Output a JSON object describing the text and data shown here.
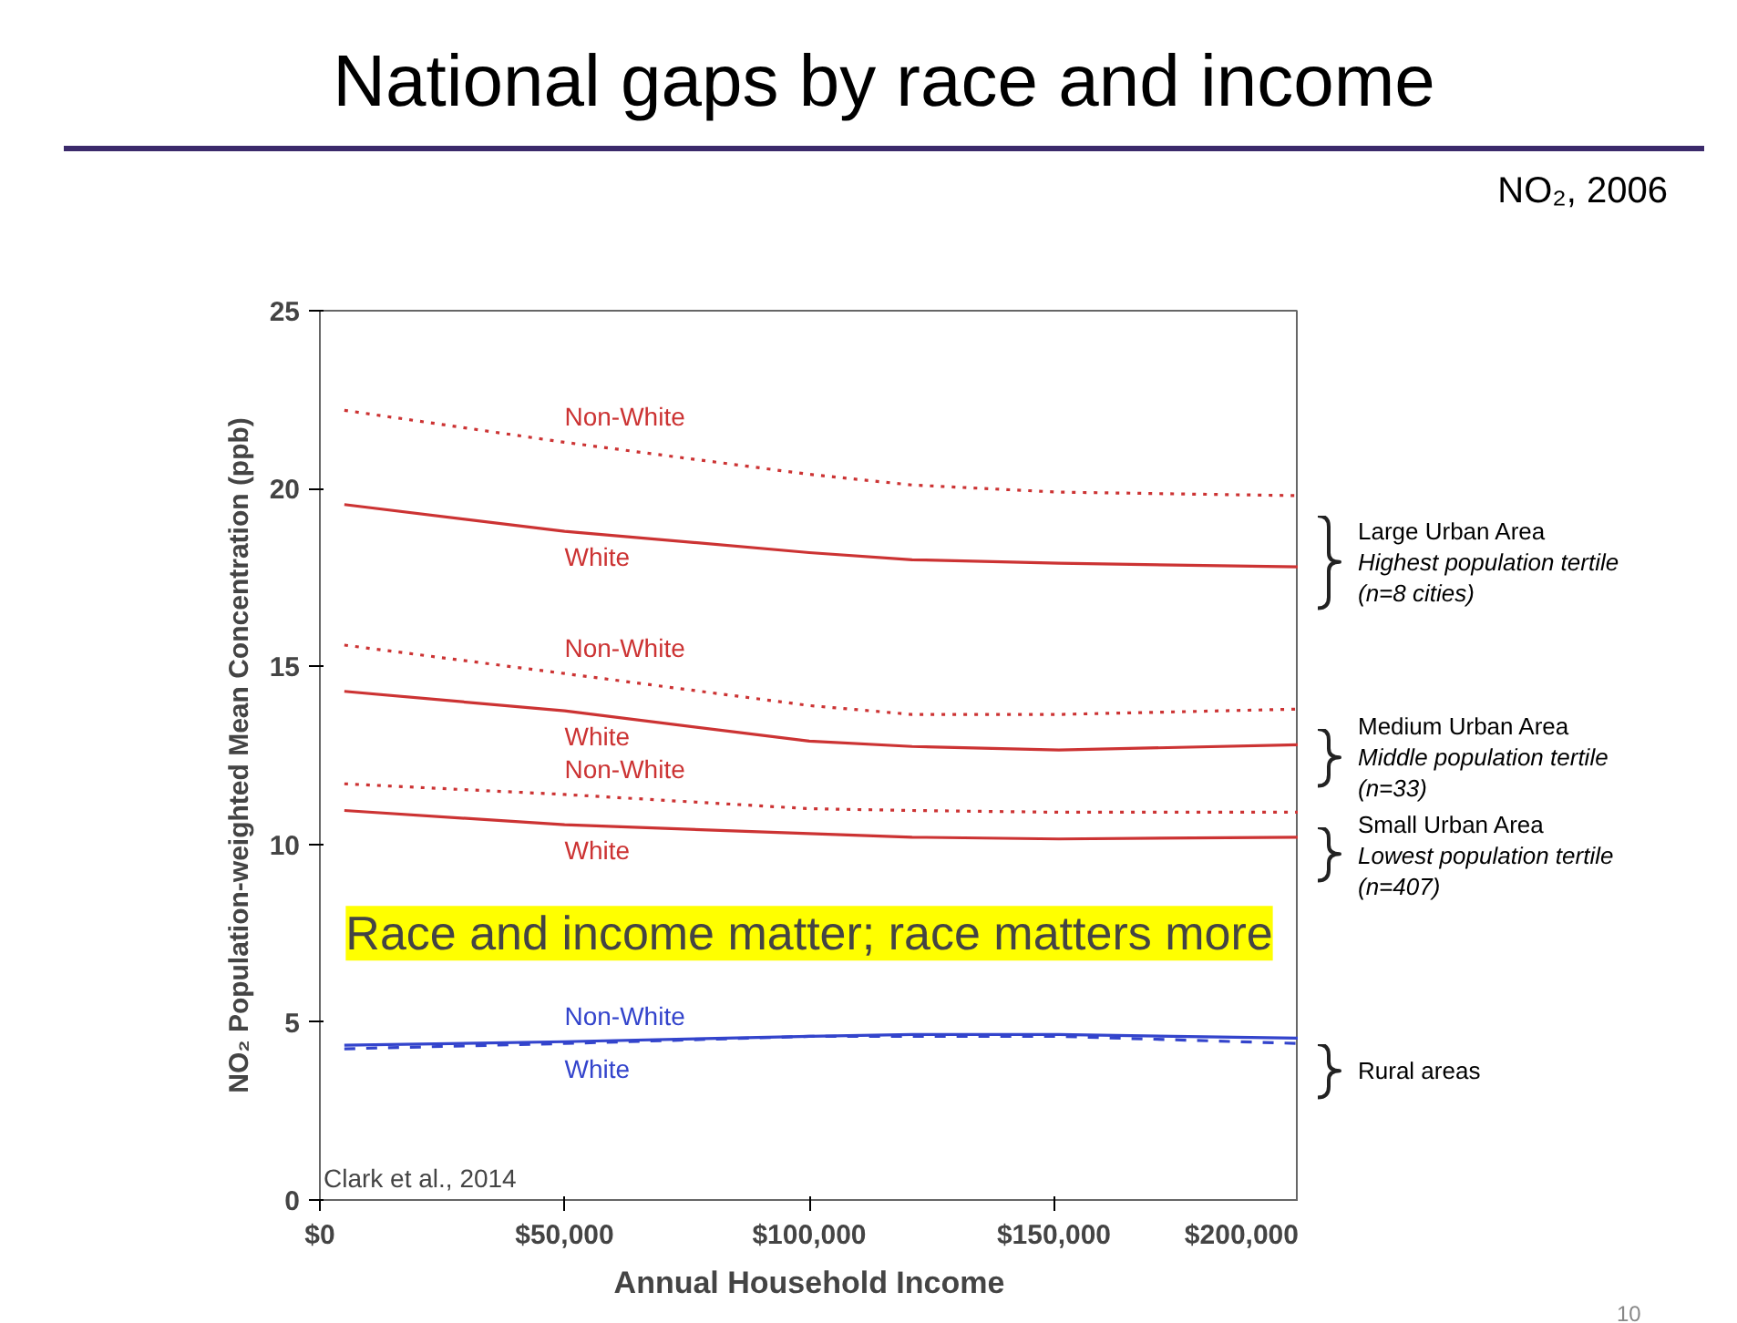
{
  "chart_data": {
    "type": "line",
    "title": "National gaps by race and income",
    "subtitle": "NO₂, 2006",
    "xlabel": "Annual Household Income",
    "ylabel": "NO₂ Population-weighted Mean Concentration (ppb)",
    "x": [
      5000,
      50000,
      100000,
      121000,
      151000,
      200000
    ],
    "series": [
      {
        "name": "Non-White",
        "color": "#cc3333",
        "line_style": "dotted",
        "values": [
          22.2,
          21.3,
          20.4,
          20.1,
          19.9,
          19.8
        ]
      },
      {
        "name": "White",
        "color": "#cc3333",
        "line_style": "solid",
        "values": [
          19.55,
          18.8,
          18.2,
          18.0,
          17.9,
          17.8
        ]
      },
      {
        "name": "Non-White",
        "color": "#cc3333",
        "line_style": "dotted",
        "values": [
          15.6,
          14.8,
          13.9,
          13.65,
          13.65,
          13.8
        ]
      },
      {
        "name": "White",
        "color": "#cc3333",
        "line_style": "solid",
        "values": [
          14.3,
          13.75,
          12.9,
          12.75,
          12.65,
          12.8
        ]
      },
      {
        "name": "Non-White",
        "color": "#cc3333",
        "line_style": "dotted",
        "values": [
          11.7,
          11.4,
          11.0,
          10.95,
          10.9,
          10.9
        ]
      },
      {
        "name": "White",
        "color": "#cc3333",
        "line_style": "solid",
        "values": [
          10.95,
          10.55,
          10.3,
          10.2,
          10.15,
          10.2
        ]
      },
      {
        "name": "Non-White",
        "color": "#3344cc",
        "line_style": "solid",
        "values": [
          4.35,
          4.45,
          4.6,
          4.65,
          4.65,
          4.55
        ]
      },
      {
        "name": "White",
        "color": "#3344cc",
        "line_style": "dashed",
        "values": [
          4.25,
          4.4,
          4.6,
          4.6,
          4.6,
          4.4
        ]
      }
    ],
    "xlim": [
      0,
      200000
    ],
    "ylim": [
      0,
      25
    ],
    "xticks": [
      {
        "value": 0,
        "label": "$0"
      },
      {
        "value": 50000,
        "label": "$50,000"
      },
      {
        "value": 100000,
        "label": "$100,000"
      },
      {
        "value": 150000,
        "label": "$150,000"
      },
      {
        "value": 200000,
        "label": "$200,000"
      }
    ],
    "yticks": [
      0,
      5,
      10,
      15,
      20,
      25
    ],
    "grid": false,
    "annotations": [
      "Large Urban Area\nHighest population tertile\n(n=8 cities)",
      "Medium Urban Area\nMiddle population tertile\n(n=33)",
      "Small Urban Area\nLowest population tertile\n(n=407)",
      "Rural areas",
      "Race and income matter; race matters more",
      "Clark et al., 2014",
      "10"
    ]
  }
}
